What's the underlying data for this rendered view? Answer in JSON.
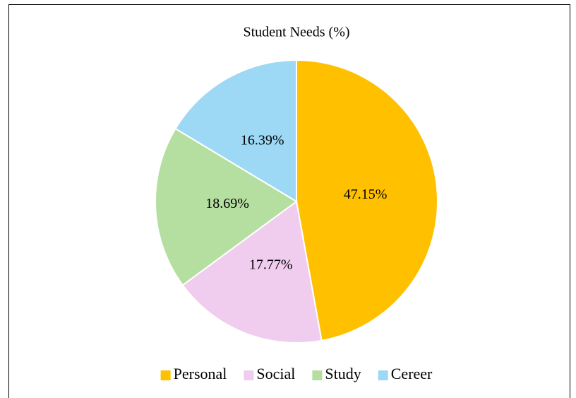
{
  "chart_data": {
    "type": "pie",
    "title": "Student Needs (%)",
    "categories": [
      "Personal",
      "Social",
      "Study",
      "Cereer"
    ],
    "values": [
      47.15,
      17.77,
      18.69,
      16.39
    ],
    "value_labels": [
      "47.15%",
      "17.77%",
      "18.69%",
      "16.39%"
    ],
    "colors": [
      "#FFC000",
      "#F0CCEE",
      "#B5DFA0",
      "#9DD8F5"
    ],
    "legend": "bottom"
  }
}
